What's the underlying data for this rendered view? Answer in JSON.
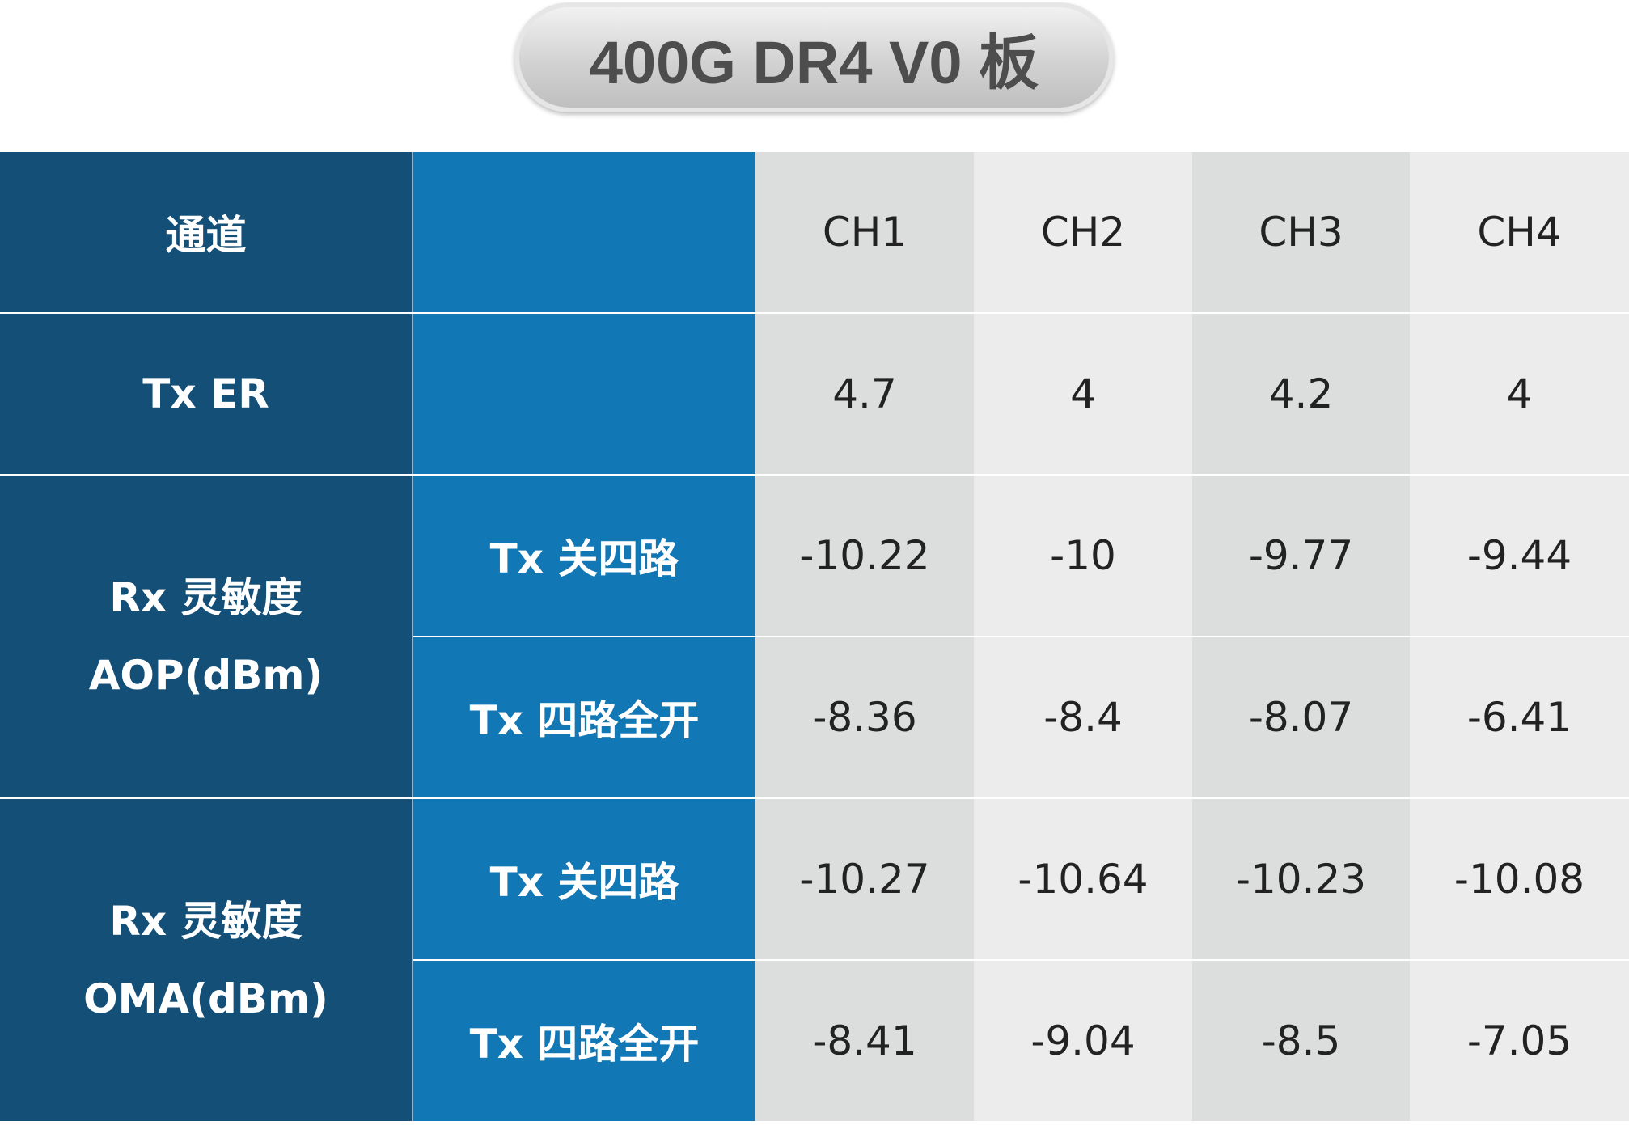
{
  "title": "400G DR4 V0 板",
  "table": {
    "header": {
      "label": "通道",
      "channels": [
        "CH1",
        "CH2",
        "CH3",
        "CH4"
      ]
    },
    "er_row": {
      "label": "Tx ER",
      "values": [
        "4.7",
        "4",
        "4.2",
        "4"
      ]
    },
    "groups": [
      {
        "label": [
          "Rx 灵敏度",
          "AOP(dBm)"
        ],
        "rows": [
          {
            "condition": "Tx 关四路",
            "values": [
              "-10.22",
              "-10",
              "-9.77",
              "-9.44"
            ]
          },
          {
            "condition": "Tx 四路全开",
            "values": [
              "-8.36",
              "-8.4",
              "-8.07",
              "-6.41"
            ]
          }
        ]
      },
      {
        "label": [
          "Rx 灵敏度",
          "OMA(dBm)"
        ],
        "rows": [
          {
            "condition": "Tx 关四路",
            "values": [
              "-10.27",
              "-10.64",
              "-10.23",
              "-10.08"
            ]
          },
          {
            "condition": "Tx 四路全开",
            "values": [
              "-8.41",
              "-9.04",
              "-8.5",
              "-7.05"
            ]
          }
        ]
      }
    ]
  }
}
